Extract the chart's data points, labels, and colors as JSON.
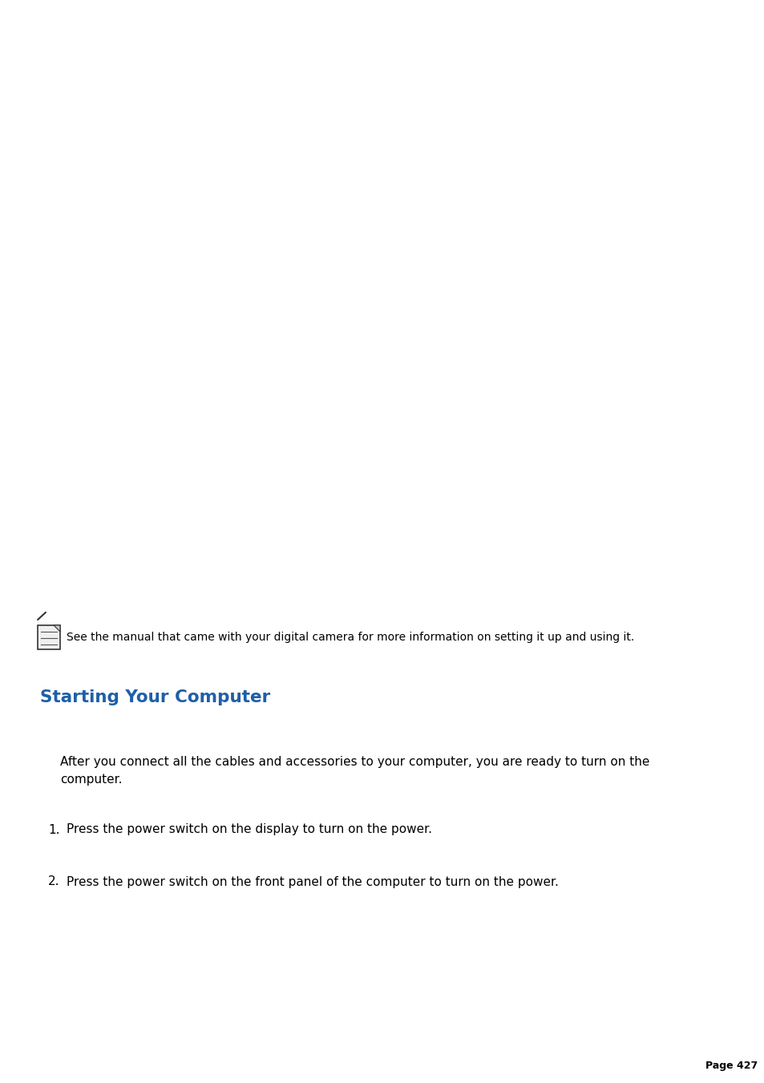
{
  "bg_color": "#ffffff",
  "title_text": "Starting Your Computer",
  "title_color": "#1e5fa8",
  "title_fontsize": 15.5,
  "note_text": "See the manual that came with your digital camera for more information on setting it up and using it.",
  "note_fontsize": 10,
  "body_text1": "After you connect all the cables and accessories to your computer, you are ready to turn on the",
  "body_text2": "computer.",
  "body_fontsize": 11,
  "item1_text": "Press the power switch on the display to turn on the power.",
  "item2_text": "Press the power switch on the front panel of the computer to turn on the power.",
  "item_fontsize": 11,
  "page_text": "Page 427",
  "page_fontsize": 9,
  "text_color": "#000000",
  "icon_color": "#333333"
}
